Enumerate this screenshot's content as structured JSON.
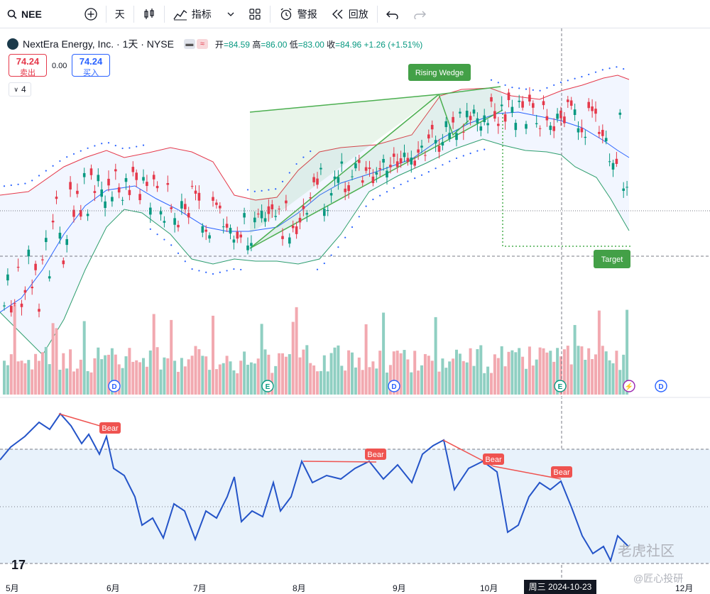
{
  "toolbar": {
    "symbol": "NEE",
    "interval": "天",
    "indicators_label": "指标",
    "alert_label": "警报",
    "replay_label": "回放"
  },
  "legend": {
    "title": "NextEra Energy, Inc. · 1天 · NYSE",
    "open_label": "开",
    "open": "=84.59",
    "high_label": "高",
    "high": "=86.00",
    "low_label": "低",
    "low": "=83.00",
    "close_label": "收",
    "close": "=84.96",
    "change": "+1.26 (+1.51%)"
  },
  "trade": {
    "sell_price": "74.24",
    "sell_label": "卖出",
    "spread": "0.00",
    "buy_price": "74.24",
    "buy_label": "买入",
    "indicators_count": "4"
  },
  "annotations": {
    "rising_wedge": "Rising Wedge",
    "target": "Target",
    "bear": "Bear"
  },
  "events": [
    "D",
    "E",
    "D",
    "E",
    "⚡",
    "D"
  ],
  "x_axis": [
    "5月",
    "6月",
    "7月",
    "8月",
    "9月",
    "10月",
    "12月"
  ],
  "crosshair_date": "周三 2024-10-23",
  "watermark": {
    "line1": "老虎社区",
    "line2": "@匠心投研"
  },
  "colors": {
    "up": "#089981",
    "down": "#e5394b",
    "band_upper": "#e5394b",
    "band_lower": "#2e9e6e",
    "basis": "#2962ff",
    "rsi": "#2454c8"
  },
  "chart_data": {
    "type": "candlestick",
    "symbol": "NEE",
    "last_ohlc": {
      "open": 84.59,
      "high": 86.0,
      "low": 83.0,
      "close": 84.96
    }
  }
}
